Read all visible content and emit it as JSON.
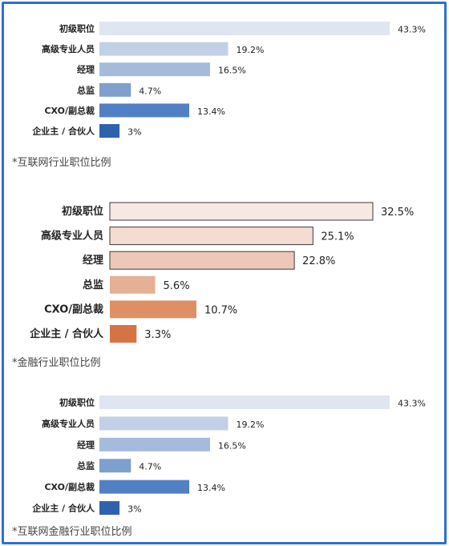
{
  "chart_data": [
    {
      "type": "bar",
      "orientation": "horizontal",
      "caption": "*互联网行业职位比例",
      "categories": [
        "初级职位",
        "高级专业人员",
        "经理",
        "总监",
        "CXO/副总裁",
        "企业主 / 合伙人"
      ],
      "values": [
        43.3,
        19.2,
        16.5,
        4.7,
        13.4,
        3
      ],
      "value_labels": [
        "43.3%",
        "19.2%",
        "16.5%",
        "4.7%",
        "13.4%",
        "3%"
      ],
      "colors": [
        "#dfe5f1",
        "#c2d0e6",
        "#a6bbdc",
        "#7f9fcc",
        "#5280c4",
        "#2f62ad"
      ],
      "unit": "%"
    },
    {
      "type": "bar",
      "orientation": "horizontal",
      "caption": "*金融行业职位比例",
      "categories": [
        "初级职位",
        "高级专业人员",
        "经理",
        "总监",
        "CXO/副总裁",
        "企业主 / 合伙人"
      ],
      "values": [
        32.5,
        25.1,
        22.8,
        5.6,
        10.7,
        3.3
      ],
      "value_labels": [
        "32.5%",
        "25.1%",
        "22.8%",
        "5.6%",
        "10.7%",
        "3.3%"
      ],
      "colors": [
        "#f7e8e4",
        "#f4dcd3",
        "#eec7b6",
        "#e6b094",
        "#de9064",
        "#d57344"
      ],
      "unit": "%"
    },
    {
      "type": "bar",
      "orientation": "horizontal",
      "caption": "*互联网金融行业职位比例",
      "categories": [
        "初级职位",
        "高级专业人员",
        "经理",
        "总监",
        "CXO/副总裁",
        "企业主 / 合伙人"
      ],
      "values": [
        43.3,
        19.2,
        16.5,
        4.7,
        13.4,
        3
      ],
      "value_labels": [
        "43.3%",
        "19.2%",
        "16.5%",
        "4.7%",
        "13.4%",
        "3%"
      ],
      "colors": [
        "#dfe5f1",
        "#c2d0e6",
        "#a6bbdc",
        "#7f9fcc",
        "#5280c4",
        "#2f62ad"
      ],
      "unit": "%"
    }
  ]
}
